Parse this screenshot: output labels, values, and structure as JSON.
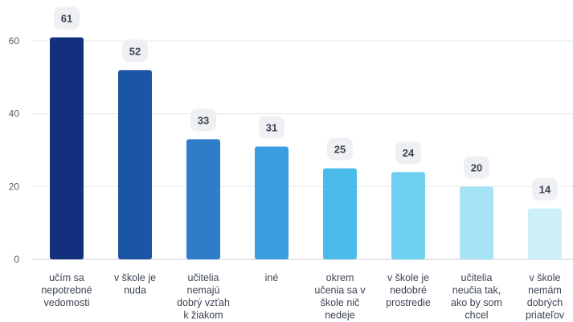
{
  "chart_data": {
    "type": "bar",
    "title": "",
    "xlabel": "",
    "ylabel": "",
    "ylim": [
      0,
      70
    ],
    "yticks": [
      0,
      20,
      40,
      60
    ],
    "grid": true,
    "legend": "none",
    "categories": [
      [
        "učím sa",
        "nepotrebné",
        "vedomosti"
      ],
      [
        "v škole je",
        "nuda"
      ],
      [
        "učitelia",
        "nemajú",
        "dobrý vzťah",
        "k žiakom"
      ],
      [
        "iné"
      ],
      [
        "okrem",
        "učenia sa v",
        "škole nič",
        "nedeje"
      ],
      [
        "v škole je",
        "nedobré",
        "prostredie"
      ],
      [
        "učitelia",
        "neučia tak,",
        "ako by som",
        "chcel"
      ],
      [
        "v škole",
        "nemám",
        "dobrých",
        "priateľov"
      ]
    ],
    "values": [
      61,
      52,
      33,
      31,
      25,
      24,
      20,
      14
    ],
    "colors": [
      "#13307f",
      "#1d55a6",
      "#2f7cc8",
      "#3a9fe0",
      "#4bbbe9",
      "#6dd0f0",
      "#a5e3f5",
      "#cdf0f8"
    ]
  }
}
